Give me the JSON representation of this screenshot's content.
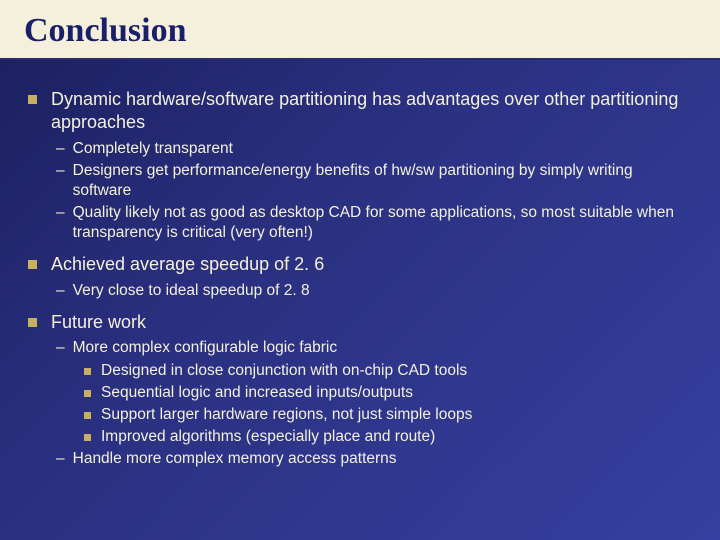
{
  "title": "Conclusion",
  "colors": {
    "header_bg": "#f5f0dc",
    "title_color": "#1a1f6a",
    "body_bg_start": "#1a1f5c",
    "body_bg_end": "#3540a0",
    "text_color": "#f5f0dc",
    "bullet_color": "#c8b060"
  },
  "bullets": {
    "p1": "Dynamic hardware/software partitioning has advantages over other partitioning approaches",
    "p1_s1": "Completely transparent",
    "p1_s2": "Designers get performance/energy benefits of hw/sw partitioning by simply writing software",
    "p1_s3": "Quality likely not as good as desktop CAD for some applications, so most suitable when transparency is critical (very often!)",
    "p2": "Achieved average speedup of 2. 6",
    "p2_s1": "Very close to ideal speedup of 2. 8",
    "p3": "Future work",
    "p3_s1": "More complex configurable logic fabric",
    "p3_s1_a": "Designed in close conjunction with on-chip CAD tools",
    "p3_s1_b": "Sequential logic and increased inputs/outputs",
    "p3_s1_c": "Support larger hardware regions, not just simple loops",
    "p3_s1_d": "Improved algorithms (especially place and route)",
    "p3_s2": "Handle more complex memory access patterns"
  }
}
